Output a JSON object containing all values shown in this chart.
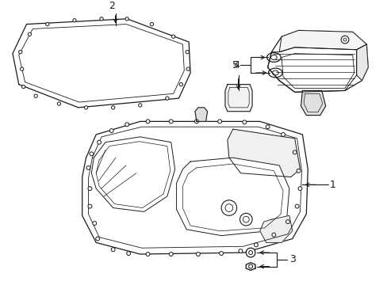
{
  "bg_color": "#ffffff",
  "lc": "#1a1a1a",
  "lw": 0.9,
  "figsize": [
    4.89,
    3.6
  ],
  "dpi": 100
}
